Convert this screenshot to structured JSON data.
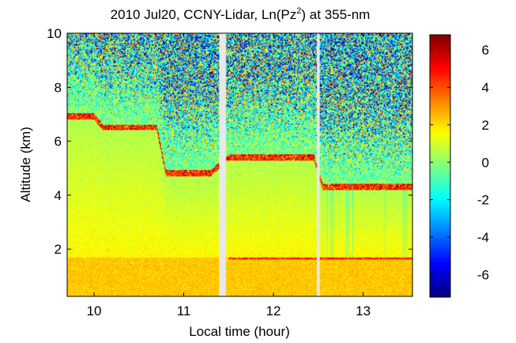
{
  "chart_data": {
    "type": "heatmap",
    "title": {
      "prefix": "2010 Jul20, CCNY-Lidar, Ln(Pz",
      "superscript": "2",
      "suffix": ") at 355-nm"
    },
    "xlabel": "Local time (hour)",
    "ylabel": "Altitude (km)",
    "xlim": [
      9.7,
      13.55
    ],
    "ylim": [
      0.25,
      10.0
    ],
    "x_ticks": [
      10,
      11,
      12,
      13
    ],
    "y_ticks": [
      2,
      4,
      6,
      8,
      10
    ],
    "colorbar": {
      "range": [
        -7.2,
        6.8
      ],
      "ticks": [
        6,
        4,
        2,
        0,
        -2,
        -4,
        -6
      ],
      "tick_labels": [
        "6",
        "4",
        "2",
        "0",
        "-2",
        "-4",
        "-6"
      ],
      "colormap": "jet"
    },
    "data_gaps_hours": [
      [
        11.39,
        11.47
      ],
      [
        12.48,
        12.52
      ]
    ],
    "aerosol_layer_tops": [
      {
        "time_range": [
          9.7,
          10.0
        ],
        "altitude_km": 6.8
      },
      {
        "time_range": [
          10.1,
          10.7
        ],
        "altitude_km": 6.4
      },
      {
        "time_range": [
          10.8,
          11.3
        ],
        "altitude_km": 4.7
      },
      {
        "time_range": [
          11.5,
          12.45
        ],
        "altitude_km": 5.3
      },
      {
        "time_range": [
          12.55,
          13.55
        ],
        "altitude_km": 4.2
      }
    ],
    "boundary_layer_height_km": 1.7,
    "grid": false,
    "legend": "none"
  }
}
